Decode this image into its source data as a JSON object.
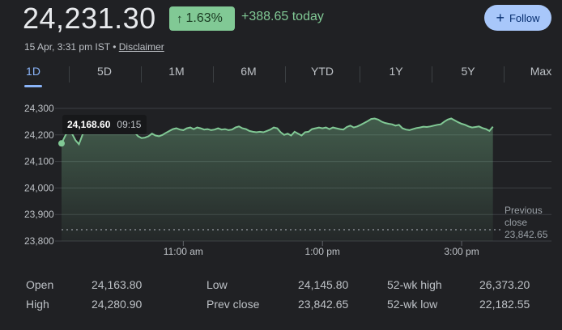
{
  "header": {
    "price": "24,231.30",
    "change_pct": "1.63%",
    "change_today": "+388.65 today",
    "follow_label": "Follow",
    "timestamp": "15 Apr, 3:31 pm IST",
    "separator": "•",
    "disclaimer": "Disclaimer"
  },
  "tabs": [
    "1D",
    "5D",
    "1M",
    "6M",
    "YTD",
    "1Y",
    "5Y",
    "Max"
  ],
  "active_tab": "1D",
  "tooltip": {
    "value": "24,168.60",
    "time": "09:15"
  },
  "previous_close_label": "Previous close",
  "previous_close_line1": "Previous",
  "previous_close_line2": "close",
  "previous_close_value": "23,842.65",
  "colors": {
    "up": "#81c995",
    "accent": "#8ab4f8",
    "line": "#81c995"
  },
  "chart_data": {
    "type": "area",
    "y_ticks": [
      "24,300",
      "24,200",
      "24,100",
      "24,000",
      "23,900",
      "23,800"
    ],
    "y_tick_values": [
      24300,
      24200,
      24100,
      24000,
      23900,
      23800
    ],
    "x_ticks": [
      "11:00 am",
      "1:00 pm",
      "3:00 pm"
    ],
    "x_tick_minutes": [
      105,
      225,
      345
    ],
    "ylim": [
      23800,
      24300
    ],
    "xlim_minutes": [
      0,
      375
    ],
    "previous_close": 23842.65,
    "series": [
      {
        "x": [
          0,
          3,
          6,
          9,
          12,
          15,
          18,
          21,
          24,
          27,
          30,
          33,
          36,
          39,
          42,
          45,
          48,
          51,
          54,
          57,
          60,
          63,
          66,
          69,
          72,
          75,
          78,
          81,
          84,
          87,
          90,
          93,
          96,
          99,
          102,
          105,
          108,
          111,
          114,
          117,
          120,
          123,
          126,
          129,
          132,
          135,
          138,
          141,
          144,
          147,
          150,
          153,
          156,
          159,
          162,
          165,
          168,
          171,
          174,
          177,
          180,
          183,
          186,
          189,
          192,
          195,
          198,
          201,
          204,
          207,
          210,
          213,
          216,
          219,
          222,
          225,
          228,
          231,
          234,
          237,
          240,
          243,
          246,
          249,
          252,
          255,
          258,
          261,
          264,
          267,
          270,
          273,
          276,
          279,
          282,
          285,
          288,
          291,
          294,
          297,
          300,
          303,
          306,
          309,
          312,
          315,
          318,
          321,
          324,
          327,
          330,
          333,
          336,
          339,
          342,
          345,
          348,
          351,
          354,
          357,
          360,
          363,
          366,
          369,
          372
        ],
        "y": [
          24168,
          24195,
          24220,
          24205,
          24180,
          24165,
          24200,
          24225,
          24240,
          24250,
          24262,
          24260,
          24255,
          24262,
          24250,
          24240,
          24235,
          24242,
          24228,
          24220,
          24215,
          24210,
          24195,
          24188,
          24190,
          24195,
          24205,
          24198,
          24195,
          24200,
          24208,
          24215,
          24222,
          24225,
          24220,
          24218,
          24225,
          24228,
          24222,
          24228,
          24225,
          24220,
          24222,
          24218,
          24220,
          24225,
          24220,
          24222,
          24218,
          24220,
          24228,
          24232,
          24225,
          24222,
          24215,
          24212,
          24210,
          24212,
          24210,
          24215,
          24220,
          24228,
          24225,
          24210,
          24200,
          24205,
          24198,
          24212,
          24205,
          24198,
          24210,
          24212,
          24222,
          24225,
          24228,
          24225,
          24228,
          24222,
          24228,
          24225,
          24222,
          24220,
          24230,
          24235,
          24228,
          24232,
          24238,
          24245,
          24252,
          24260,
          24262,
          24258,
          24250,
          24245,
          24242,
          24240,
          24235,
          24238,
          24225,
          24220,
          24218,
          24222,
          24226,
          24228,
          24231,
          24230,
          24232,
          24235,
          24238,
          24240,
          24250,
          24258,
          24262,
          24255,
          24248,
          24242,
          24238,
          24232,
          24228,
          24230,
          24232,
          24226,
          24222,
          24215,
          24231
        ]
      }
    ]
  },
  "stats": [
    {
      "label": "Open",
      "value": "24,163.80"
    },
    {
      "label": "High",
      "value": "24,280.90"
    },
    {
      "label": "Low",
      "value": "24,145.80"
    },
    {
      "label": "Prev close",
      "value": "23,842.65"
    },
    {
      "label": "52-wk high",
      "value": "26,373.20"
    },
    {
      "label": "52-wk low",
      "value": "22,182.55"
    }
  ]
}
